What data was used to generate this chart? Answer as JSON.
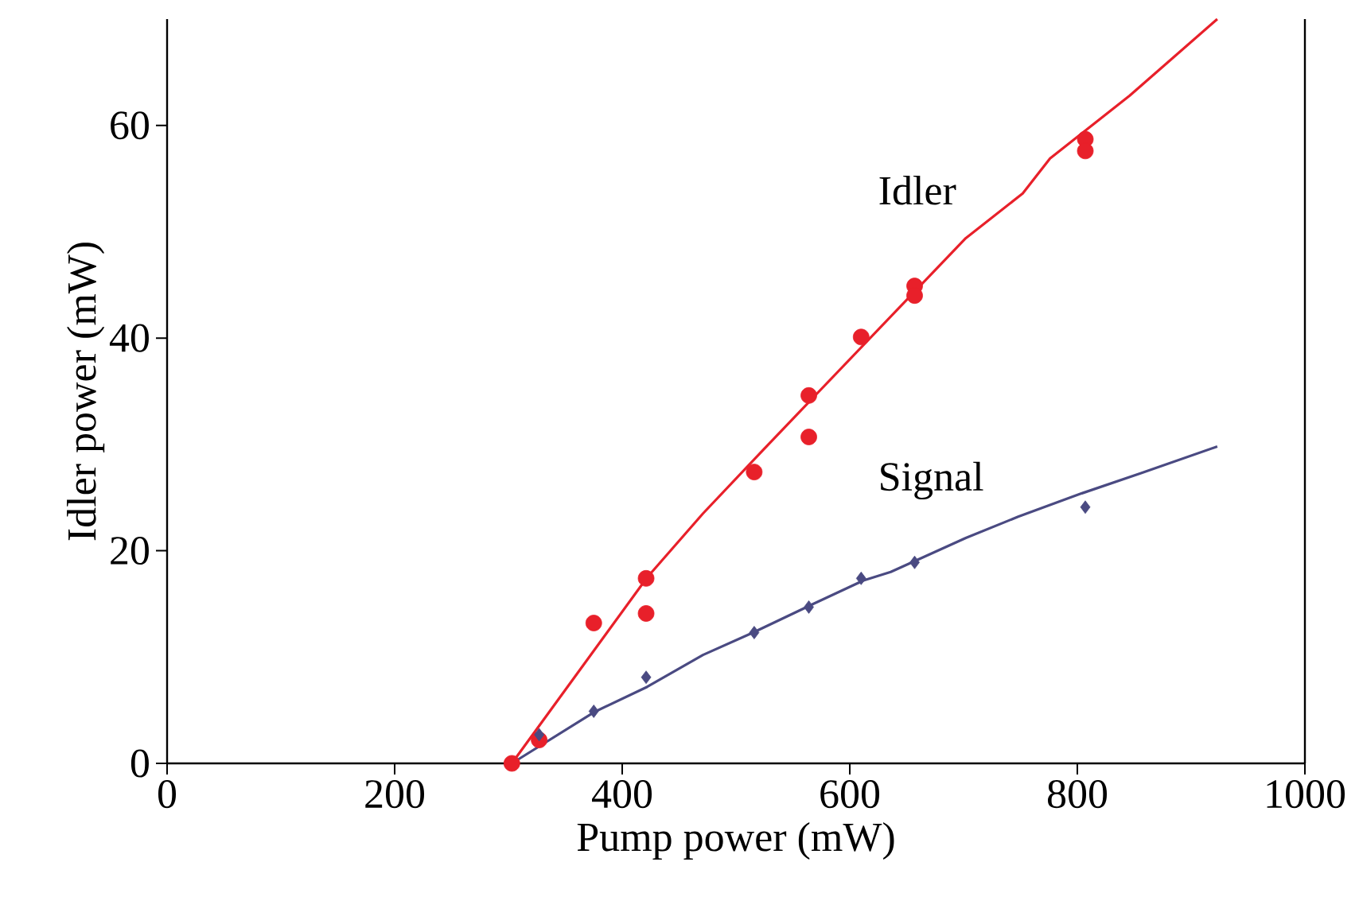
{
  "chart_data": {
    "type": "scatter",
    "xlabel": "Pump power (mW)",
    "ylabel": "Idler power (mW)",
    "xlim": [
      0,
      1000
    ],
    "ylim": [
      0,
      70
    ],
    "xticks": [
      0,
      200,
      400,
      600,
      800,
      1000
    ],
    "yticks": [
      0,
      20,
      40,
      60
    ],
    "grid": false,
    "series": [
      {
        "type": "scatter",
        "marker": "circle",
        "color": "#e8202a",
        "x": [
          303,
          327,
          375,
          421,
          421,
          516,
          564,
          564,
          610,
          657,
          657,
          807,
          807
        ],
        "values": [
          0,
          2.2,
          13.2,
          17.4,
          14.1,
          27.4,
          34.6,
          30.7,
          40.1,
          44.9,
          44.0,
          58.7,
          57.6
        ]
      },
      {
        "type": "line",
        "marker": "none",
        "name": "Idler",
        "color": "#e8202a",
        "x": [
          303,
          422,
          471,
          524,
          702,
          752,
          776,
          846,
          923
        ],
        "values": [
          0,
          17.5,
          23.5,
          29.5,
          49.4,
          53.6,
          56.9,
          62.8,
          70.0
        ]
      },
      {
        "type": "scatter",
        "marker": "diamond",
        "color": "#4a4a82",
        "x": [
          327,
          375,
          421,
          516,
          564,
          610,
          657,
          807
        ],
        "values": [
          2.7,
          4.9,
          8.1,
          12.3,
          14.7,
          17.4,
          18.9,
          24.1
        ]
      },
      {
        "type": "line",
        "marker": "none",
        "name": "Signal",
        "color": "#4a4a82",
        "x": [
          303,
          375,
          422,
          471,
          515,
          562,
          612,
          636,
          702,
          748,
          804,
          856,
          923
        ],
        "values": [
          0,
          4.8,
          7.2,
          10.2,
          12.3,
          14.7,
          17.2,
          18.0,
          21.2,
          23.2,
          25.4,
          27.3,
          29.8
        ]
      }
    ]
  }
}
